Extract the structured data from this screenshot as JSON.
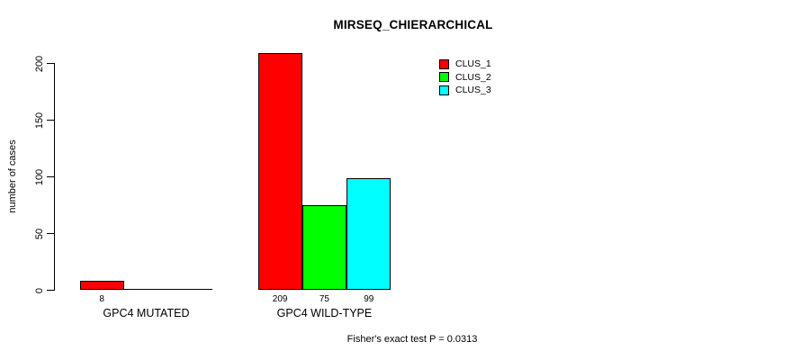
{
  "title": "MIRSEQ_CHIERARCHICAL",
  "footnote": "Fisher's exact test P = 0.0313",
  "y_axis": {
    "label": "number of cases",
    "ticks": [
      "0",
      "50",
      "100",
      "150",
      "200"
    ]
  },
  "groups": [
    {
      "label": "GPC4 MUTATED",
      "bars": [
        {
          "cluster": "CLUS_1",
          "value": 8,
          "label": "8",
          "color": "#FF0000"
        },
        {
          "cluster": "CLUS_2",
          "value": 0,
          "label": "",
          "color": "#00FF00"
        },
        {
          "cluster": "CLUS_3",
          "value": 0,
          "label": "",
          "color": "#00FFFF"
        }
      ]
    },
    {
      "label": "GPC4 WILD-TYPE",
      "bars": [
        {
          "cluster": "CLUS_1",
          "value": 209,
          "label": "209",
          "color": "#FF0000"
        },
        {
          "cluster": "CLUS_2",
          "value": 75,
          "label": "75",
          "color": "#00FF00"
        },
        {
          "cluster": "CLUS_3",
          "value": 99,
          "label": "99",
          "color": "#00FFFF"
        }
      ]
    }
  ],
  "legend": [
    {
      "label": "CLUS_1",
      "color": "#FF0000"
    },
    {
      "label": "CLUS_2",
      "color": "#00FF00"
    },
    {
      "label": "CLUS_3",
      "color": "#00FFFF"
    }
  ],
  "colors": {
    "clus_1": "#FF0000",
    "clus_2": "#00FF00",
    "clus_3": "#00FFFF",
    "axis": "#000000",
    "background": "#FFFFFF"
  },
  "chart_data": {
    "type": "bar",
    "title": "MIRSEQ_CHIERARCHICAL",
    "categories": [
      "GPC4 MUTATED",
      "GPC4 WILD-TYPE"
    ],
    "series": [
      {
        "name": "CLUS_1",
        "color": "#FF0000",
        "values": [
          8,
          209
        ]
      },
      {
        "name": "CLUS_2",
        "color": "#00FF00",
        "values": [
          0,
          75
        ]
      },
      {
        "name": "CLUS_3",
        "color": "#00FFFF",
        "values": [
          0,
          99
        ]
      }
    ],
    "bar_value_labels": [
      [
        "8",
        "",
        ""
      ],
      [
        "209",
        "75",
        "99"
      ]
    ],
    "xlabel": "",
    "ylabel": "number of cases",
    "ylim": [
      0,
      209
    ],
    "yticks": [
      0,
      50,
      100,
      150,
      200
    ],
    "grid": false,
    "legend_position": "inside-top-right",
    "annotation": "Fisher's exact test P = 0.0313",
    "bar_layout": "grouped-beside",
    "y_tick_label_rotation": 90
  }
}
